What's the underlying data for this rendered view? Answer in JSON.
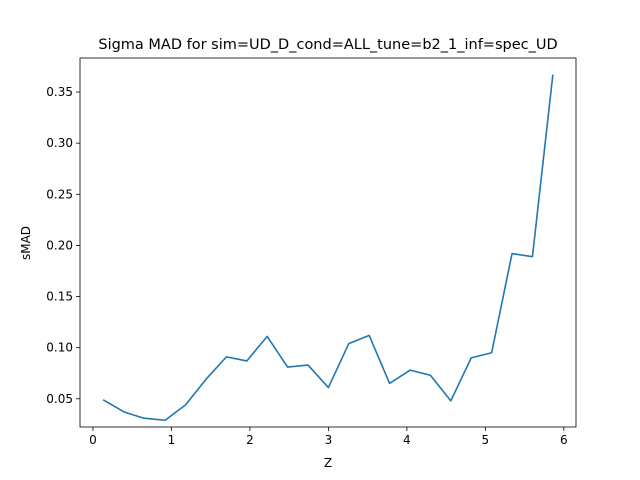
{
  "chart_data": {
    "type": "line",
    "title": "Sigma MAD for sim=UD_D_cond=ALL_tune=b2_1_inf=spec_UD",
    "xlabel": "Z",
    "ylabel": "sMAD",
    "xlim": [
      -0.165,
      6.155
    ],
    "ylim": [
      0.0224,
      0.3833
    ],
    "xticks": [
      0,
      1,
      2,
      3,
      4,
      5,
      6
    ],
    "xtick_labels": [
      "0",
      "1",
      "2",
      "3",
      "4",
      "5",
      "6"
    ],
    "yticks": [
      0.05,
      0.1,
      0.15,
      0.2,
      0.25,
      0.3,
      0.35
    ],
    "ytick_labels": [
      "0.05",
      "0.10",
      "0.15",
      "0.20",
      "0.25",
      "0.30",
      "0.35"
    ],
    "grid": false,
    "series": [
      {
        "color": "#1f77b4",
        "x": [
          0.13,
          0.4,
          0.65,
          0.92,
          1.18,
          1.44,
          1.7,
          1.96,
          2.22,
          2.48,
          2.74,
          3.0,
          3.26,
          3.52,
          3.78,
          4.04,
          4.3,
          4.56,
          4.82,
          5.08,
          5.34,
          5.6,
          5.86
        ],
        "y": [
          0.049,
          0.037,
          0.031,
          0.029,
          0.044,
          0.069,
          0.091,
          0.087,
          0.111,
          0.081,
          0.083,
          0.061,
          0.104,
          0.112,
          0.065,
          0.078,
          0.073,
          0.048,
          0.09,
          0.095,
          0.192,
          0.189,
          0.367
        ]
      }
    ]
  }
}
